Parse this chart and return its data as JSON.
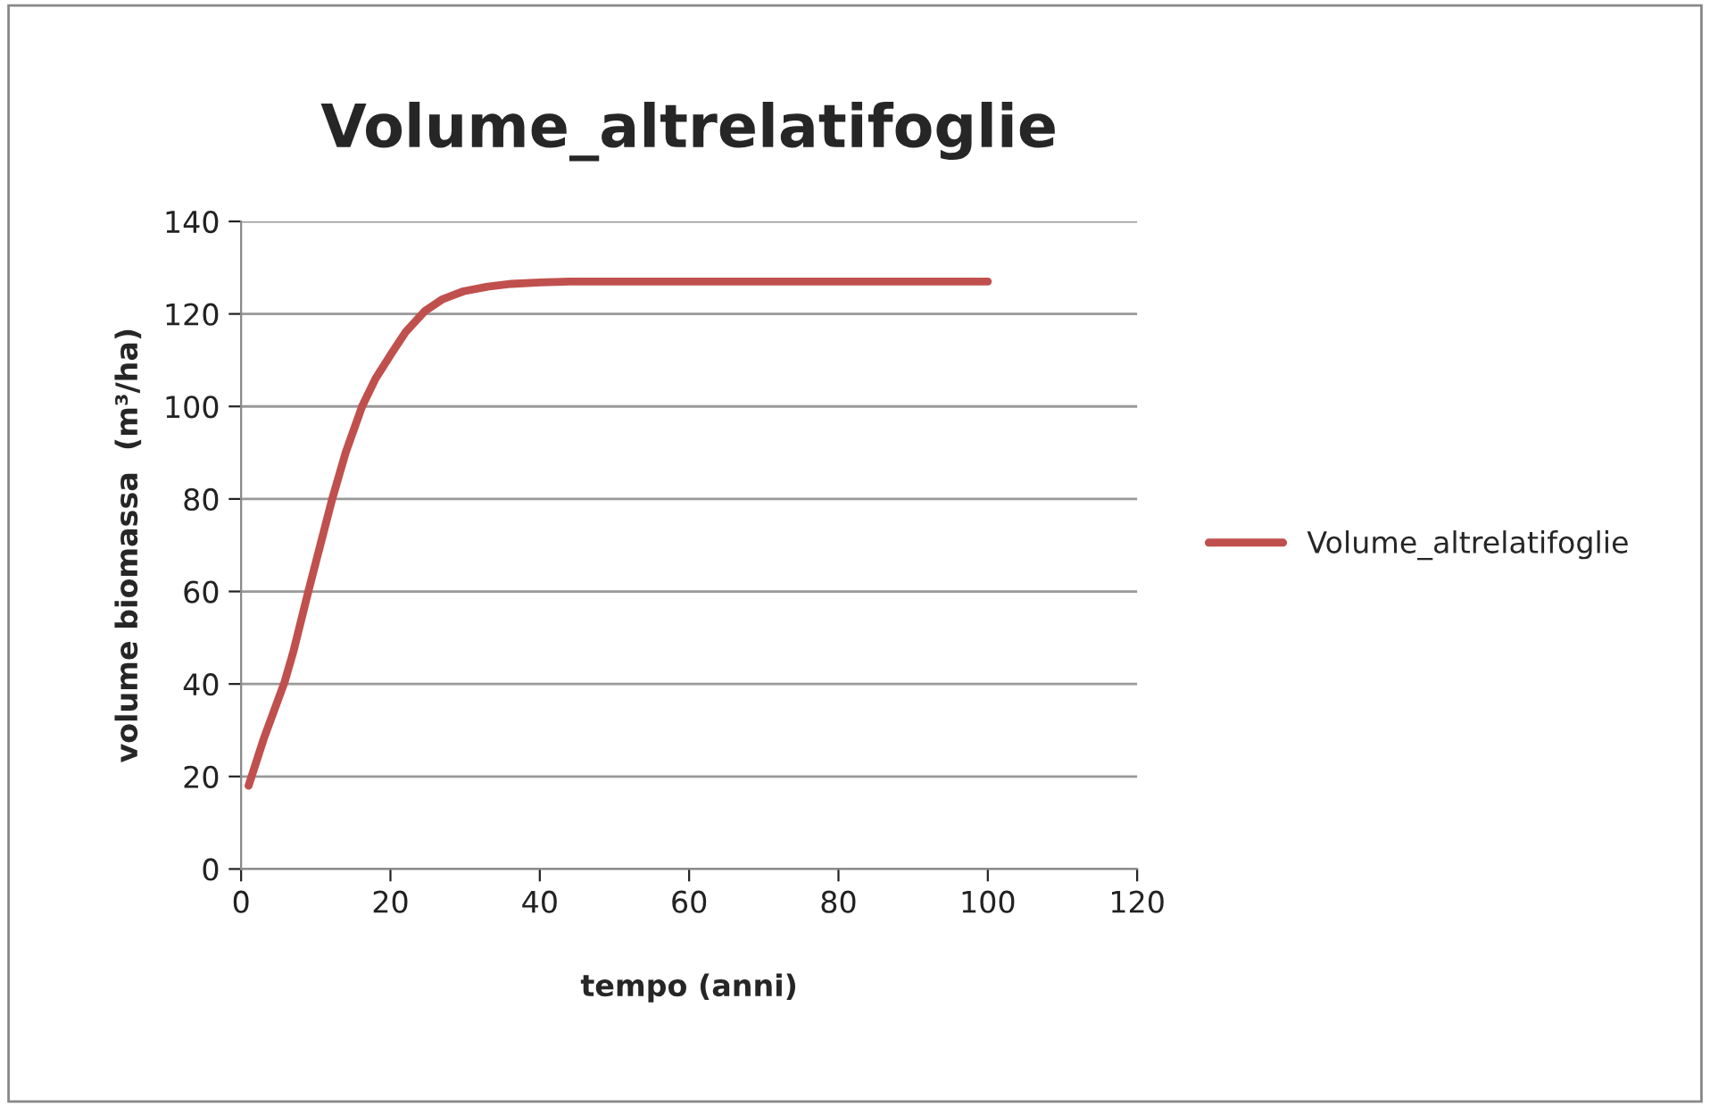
{
  "chart_data": {
    "type": "line",
    "title": "Volume_altrelatifoglie",
    "xlabel": "tempo (anni)",
    "ylabel": "volume biomassa  (m³/ha)",
    "series": [
      {
        "name": "Volume_altrelatifoglie",
        "color": "#c0504d",
        "x": [
          1,
          3,
          5.8,
          7,
          9,
          12.2,
          14,
          16.2,
          18,
          20.2,
          22,
          24.6,
          27,
          29.8,
          33,
          36.2,
          40,
          44,
          50,
          60,
          70,
          80,
          90,
          100
        ],
        "values": [
          18,
          28,
          40.3,
          47,
          60,
          80,
          90,
          100,
          106,
          111.6,
          116,
          120.6,
          123.2,
          124.9,
          125.9,
          126.5,
          126.8,
          127,
          127,
          127,
          127,
          127,
          127,
          127
        ]
      }
    ],
    "xlim": [
      0,
      120
    ],
    "xticks": [
      0,
      20,
      40,
      60,
      80,
      100,
      120
    ],
    "ylim": [
      0,
      140
    ],
    "yticks": [
      0,
      20,
      40,
      60,
      80,
      100,
      120,
      140
    ],
    "grid": "y",
    "legend": "right",
    "marker": "none",
    "line_style": "solid"
  }
}
